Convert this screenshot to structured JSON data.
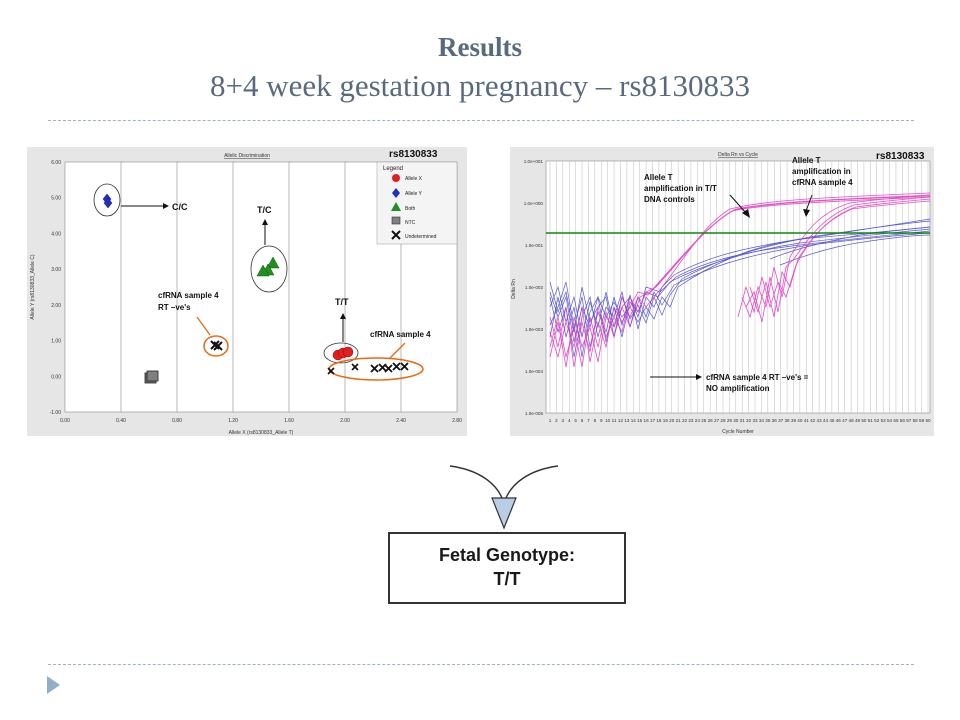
{
  "title": {
    "main": "Results",
    "sub": "8+4 week gestation pregnancy – rs8130833"
  },
  "left_plot": {
    "header_title": "Allelic Discrimination",
    "snp_label": "rs8130833",
    "x_axis_label": "Allele X (rs8130833_Allele T)",
    "y_axis_label": "Allele Y (rs8130833_Allele C)",
    "x_ticks": [
      "0.00",
      "0.40",
      "0.80",
      "1.20",
      "1.60",
      "2.00",
      "2.40",
      "2.80"
    ],
    "y_ticks": [
      "6.00",
      "5.00",
      "4.00",
      "3.00",
      "2.00",
      "1.00",
      "0.00",
      "-1.00"
    ],
    "legend": {
      "title": "Legend",
      "items": [
        {
          "label": "Allele X",
          "color": "#e02020",
          "icon": "red-circle"
        },
        {
          "label": "Allele Y",
          "color": "#2030c0",
          "icon": "blue-diamond"
        },
        {
          "label": "Both",
          "color": "#209020",
          "icon": "green-triangle"
        },
        {
          "label": "NTC",
          "color": "#808080",
          "icon": "gray-square"
        },
        {
          "label": "Undetermined",
          "color": "#111111",
          "icon": "black-x"
        }
      ]
    },
    "annotations": {
      "cc": "C/C",
      "tc": "T/C",
      "tt": "T/T",
      "rtneg_line1": "cfRNA sample 4",
      "rtneg_line2": "RT –ve's",
      "cfrna": "cfRNA sample 4"
    }
  },
  "right_plot": {
    "header_title": "Delta Rn vs Cycle",
    "snp_label": "rs8130833",
    "x_axis_label": "Cycle Number",
    "y_axis_label": "Delta Rn",
    "y_ticks": [
      "1.0e+001",
      "1.0e+000",
      "1.0e-001",
      "1.0e-002",
      "1.0e-003",
      "1.0e-004",
      "1.0e-005"
    ],
    "x_ticks": [
      "1",
      "2",
      "3",
      "4",
      "5",
      "6",
      "7",
      "8",
      "9",
      "10",
      "11",
      "12",
      "13",
      "14",
      "15",
      "16",
      "17",
      "18",
      "19",
      "20",
      "21",
      "22",
      "23",
      "24",
      "25",
      "26",
      "27",
      "28",
      "29",
      "30",
      "31",
      "32",
      "33",
      "34",
      "35",
      "36",
      "37",
      "38",
      "39",
      "40",
      "41",
      "42",
      "43",
      "44",
      "45",
      "46",
      "47",
      "48",
      "49",
      "50",
      "51",
      "52",
      "53",
      "54",
      "55",
      "56",
      "57",
      "58",
      "59",
      "60"
    ],
    "annotations": {
      "dna_line1": "Allele T",
      "dna_line2": "amplification in T/T",
      "dna_line3": "DNA controls",
      "cf_line1": "Allele T",
      "cf_line2": "amplification in",
      "cf_line3": "cfRNA sample 4",
      "rt_line1": "cfRNA sample 4 RT –ve's =",
      "rt_line2": "NO amplification"
    }
  },
  "result_box": {
    "line1": "Fetal Genotype:",
    "line2": "T/T"
  }
}
